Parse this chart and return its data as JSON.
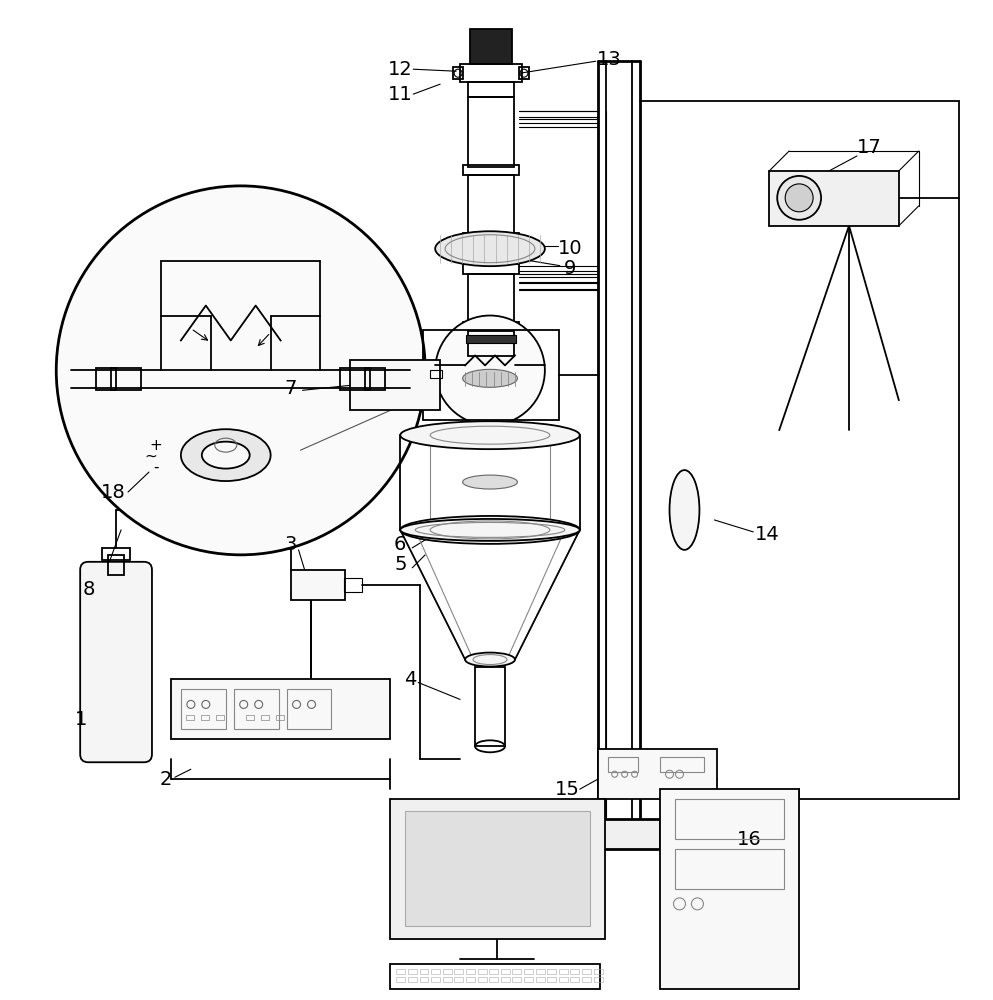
{
  "bg_color": "#ffffff",
  "line_color": "#000000",
  "fig_width": 9.93,
  "fig_height": 10.0,
  "lw_main": 1.3,
  "lw_thick": 2.0,
  "lw_thin": 0.8
}
